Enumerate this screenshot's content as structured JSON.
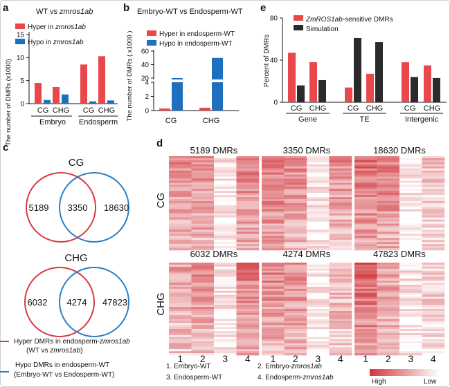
{
  "panels": {
    "a": {
      "letter": "a",
      "title": "WT vs ",
      "title_em": "zmros1ab",
      "legend": [
        {
          "text": "Hyper in ",
          "em": "zmros1ab",
          "color": "#e8474c"
        },
        {
          "text": "Hypo in ",
          "em": "zmros1ab",
          "color": "#1f6fbf"
        }
      ],
      "ylabel": "The number of DMRs (x1000)",
      "ticks": [
        "0",
        "5",
        "10",
        "15"
      ],
      "x_sub": [
        "CG",
        "CHG",
        "CG",
        "CHG"
      ],
      "x_groups": [
        "Embryo",
        "Endosperm"
      ]
    },
    "b": {
      "letter": "b",
      "title": "Embryo-WT vs Endosperm-WT",
      "legend": [
        {
          "text": "Hyper in endosperm-WT",
          "color": "#e8474c"
        },
        {
          "text": "Hypo in endosperm-WT",
          "color": "#1f6fbf"
        }
      ],
      "ylabel": "The number of DMRs ( x1000 )",
      "ticks": [
        "0",
        "2",
        "4",
        "20",
        "40",
        "60"
      ],
      "x_labels": [
        "CG",
        "CHG"
      ]
    },
    "c": {
      "letter": "c",
      "cg": {
        "title": "CG",
        "left": "5189",
        "center": "3350",
        "right": "18630"
      },
      "chg": {
        "title": "CHG",
        "left": "6032",
        "center": "4274",
        "right": "47823"
      },
      "legend_hyper": {
        "prefix": "Hyper DMRs in endosperm-",
        "em": "zmros1ab",
        "line2a": "(WT vs ",
        "line2em": "zmros1ab",
        "line2b": ")"
      },
      "legend_hypo": {
        "line1": "Hypo DMRs in endosperm-WT",
        "line2": "(Embryo-WT vs Endosperm-WT)"
      },
      "colors": {
        "red": "#d83a3f",
        "blue": "#2a7fc4"
      }
    },
    "d": {
      "letter": "d",
      "row_labels": [
        "CG",
        "CHG"
      ],
      "titles": [
        "5189 DMRs",
        "3350 DMRs",
        "18630 DMRs",
        "6032 DMRs",
        "4274 DMRs",
        "47823 DMRs"
      ],
      "col_numbers": [
        "1",
        "2",
        "3",
        "4"
      ],
      "legend": [
        "1. Embryo-WT",
        "2. Embryo-",
        "3. Endosperm-WT",
        "4. Endosperm-"
      ],
      "legend_em": "zmros1ab",
      "scale_high": "High",
      "scale_low": "Low"
    },
    "e": {
      "letter": "e",
      "legend": [
        {
          "text": "-sensitive DMRs",
          "em": "ZmROS1ab",
          "color": "#e8474c"
        },
        {
          "text": "Simulation",
          "color": "#2b2b2b"
        }
      ],
      "ylabel": "Percent of DMRs",
      "ticks": [
        "0",
        "40",
        "80"
      ],
      "x_sub": [
        "CG",
        "CHG",
        "CG",
        "CHG",
        "CG",
        "CHG"
      ],
      "x_groups": [
        "Gene",
        "TE",
        "Intergenic"
      ]
    }
  },
  "chart_data": [
    {
      "panel": "a",
      "type": "bar",
      "categories": [
        "Embryo CG",
        "Embryo CHG",
        "Endosperm CG",
        "Endosperm CHG"
      ],
      "ylim": [
        0,
        15
      ],
      "series": [
        {
          "name": "Hyper in zmros1ab",
          "values": [
            4.5,
            3.6,
            8.5,
            10.3
          ]
        },
        {
          "name": "Hypo in zmros1ab",
          "values": [
            0.8,
            2.0,
            0.5,
            0.7
          ]
        }
      ]
    },
    {
      "panel": "b",
      "type": "bar",
      "categories": [
        "CG",
        "CHG"
      ],
      "series": [
        {
          "name": "Hyper in endosperm-WT",
          "values": [
            0.3,
            0.4
          ]
        },
        {
          "name": "Hypo in endosperm-WT",
          "values": [
            20,
            50
          ]
        }
      ]
    },
    {
      "panel": "e",
      "type": "bar",
      "categories": [
        "Gene CG",
        "Gene CHG",
        "TE CG",
        "TE CHG",
        "Intergenic CG",
        "Intergenic CHG"
      ],
      "ylim": [
        0,
        80
      ],
      "series": [
        {
          "name": "ZmROS1ab-sensitive DMRs",
          "values": [
            47,
            38,
            14,
            27,
            38,
            35
          ]
        },
        {
          "name": "Simulation",
          "values": [
            16,
            21,
            61,
            57,
            24,
            23
          ]
        }
      ]
    }
  ]
}
